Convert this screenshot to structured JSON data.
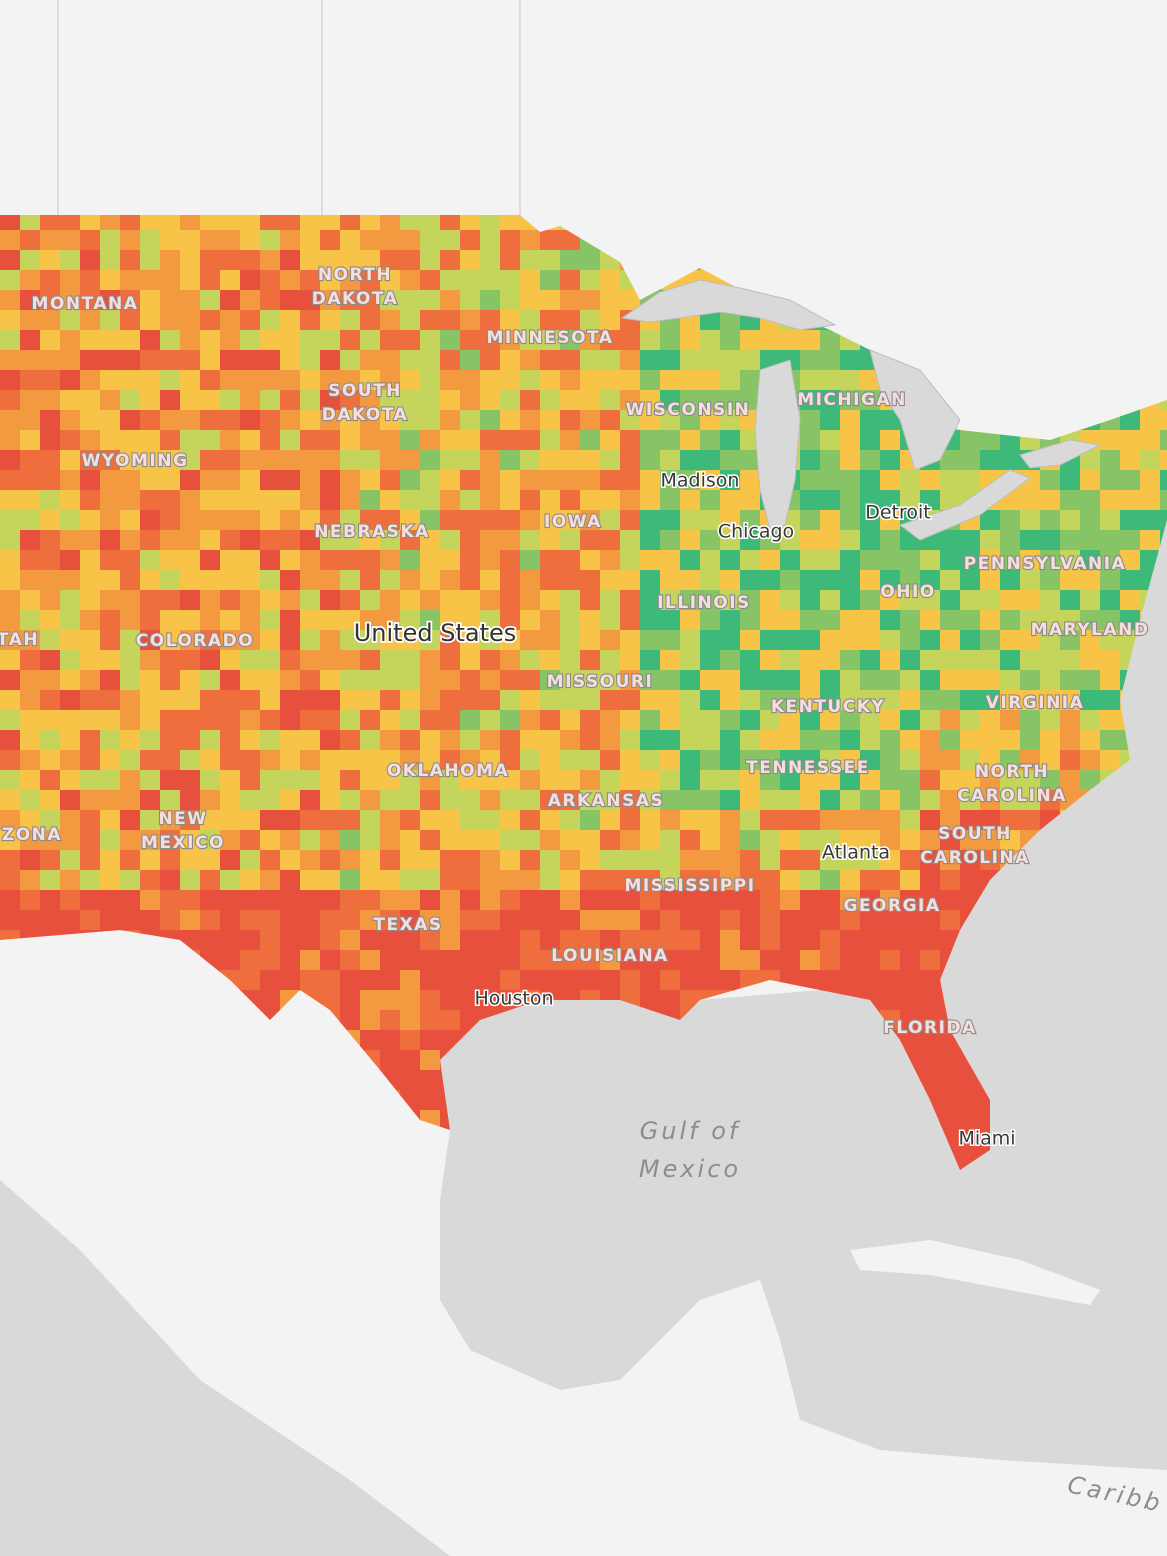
{
  "map": {
    "country_label": "United States",
    "state_labels": [
      "MONTANA",
      [
        "NORTH",
        "DAKOTA"
      ],
      "MINNESOTA",
      [
        "SOUTH",
        "DAKOTA"
      ],
      "WISCONSIN",
      "MICHIGAN",
      "WYOMING",
      "IOWA",
      "NEBRASKA",
      "PENNSYLVANIA",
      "OHIO",
      "ILLINOIS",
      "MARYLAND",
      "TAH",
      "COLORADO",
      "MISSOURI",
      "KENTUCKY",
      "VIRGINIA",
      "OKLAHOMA",
      "TENNESSEE",
      [
        "NORTH",
        "CAROLINA"
      ],
      "ARKANSAS",
      [
        "NEW",
        "MEXICO"
      ],
      "ZONA",
      [
        "SOUTH",
        "CAROLINA"
      ],
      "MISSISSIPPI",
      "GEORGIA",
      "TEXAS",
      "LOUISIANA",
      "FLORIDA"
    ],
    "city_labels": [
      "Madison",
      "Detroit",
      "Chicago",
      "Atlanta",
      "Houston",
      "Miami"
    ],
    "water_labels": [
      [
        "Gulf of",
        "Mexico"
      ],
      "Caribb"
    ]
  }
}
